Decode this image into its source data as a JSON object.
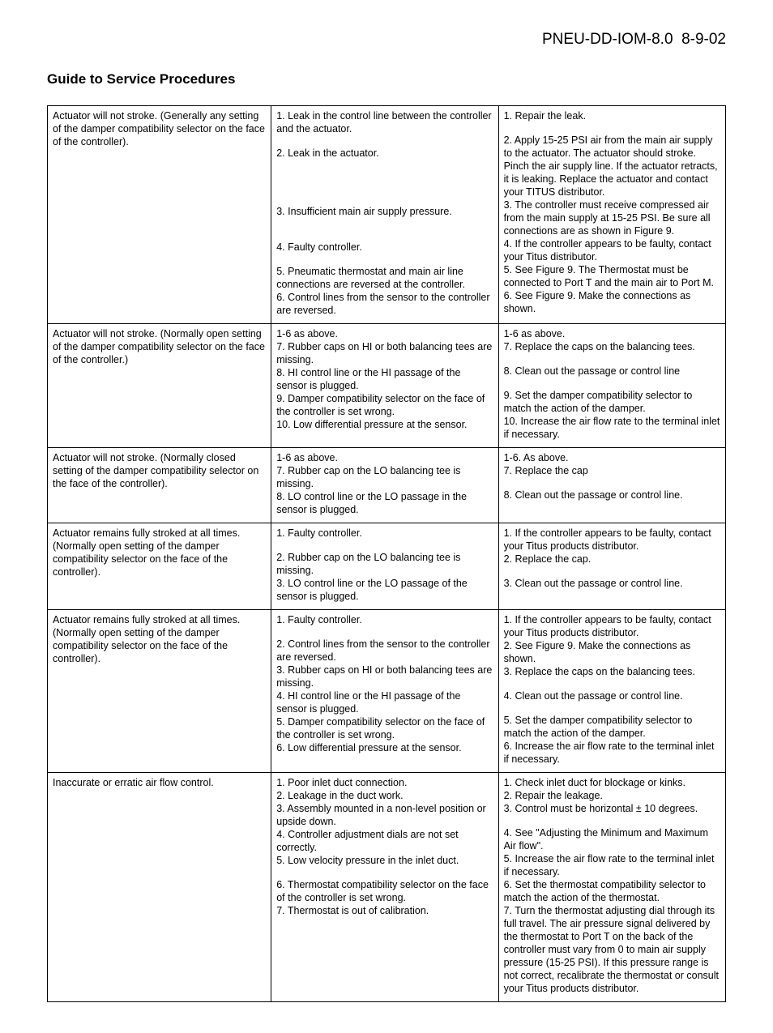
{
  "header": {
    "doc_id": "PNEU-DD-IOM-8.0",
    "date": "8-9-02"
  },
  "section_title": "Guide to Service Procedures",
  "rows": [
    {
      "problem": "Actuator will not stroke. (Generally any setting of the damper compatibility selector on the face of the controller).",
      "causes": [
        "1. Leak in the control line between the controller and the actuator.",
        "",
        "2. Leak in the actuator.",
        "",
        "",
        "",
        "",
        "3. Insufficient main air supply pressure.",
        "",
        "",
        "4. Faulty controller.",
        "",
        "5. Pneumatic thermostat and main air line connections are reversed at the controller.",
        "6. Control lines from the sensor to the controller are reversed."
      ],
      "remedies": [
        "1. Repair the leak.",
        "",
        "2. Apply 15-25 PSI air from the main air supply to the actuator. The actuator should stroke. Pinch the air supply line. If the actuator retracts, it is leaking. Replace the actuator and contact your TITUS distributor.",
        "3. The controller must receive compressed air from the main supply at 15-25 PSI. Be sure all connections are as shown in Figure 9.",
        "4. If the controller appears to be faulty, contact your Titus distributor.",
        "5. See Figure 9. The Thermostat must be connected to Port T and the main air to Port M.",
        "6. See Figure 9. Make the connections as shown."
      ]
    },
    {
      "problem": "Actuator will not stroke. (Normally open setting of the damper compatibility selector on the face of the controller.)",
      "causes": [
        "1-6 as above.",
        "7. Rubber caps on HI or both balancing tees are missing.",
        "8. HI control line or the HI passage of the sensor is plugged.",
        "9. Damper compatibility selector on the face of the controller is set wrong.",
        "10. Low differential pressure at the sensor."
      ],
      "remedies": [
        "1-6 as above.",
        "7. Replace the caps on the balancing tees.",
        "",
        "8. Clean out the passage or control line",
        "",
        "9. Set the damper compatibility selector to match the action of the damper.",
        "10. Increase the air flow rate to the terminal inlet if necessary."
      ]
    },
    {
      "problem": "Actuator will not stroke. (Normally closed setting of the damper compatibility selector on the face of the controller).",
      "causes": [
        "1-6 as above.",
        "7. Rubber cap on the LO balancing tee is missing.",
        "8. LO control line or the LO passage in the sensor is plugged."
      ],
      "remedies": [
        "1-6. As above.",
        "7. Replace the cap",
        "",
        "8. Clean out the passage or control line."
      ]
    },
    {
      "problem": "Actuator remains fully stroked at all times. (Normally open setting of the damper compatibility selector on the face of the controller).",
      "causes": [
        "1. Faulty controller.",
        "",
        "2. Rubber cap on the LO balancing tee is missing.",
        "3. LO control line or the LO passage of the sensor is plugged."
      ],
      "remedies": [
        "1. If the controller appears to be faulty, contact your Titus products distributor.",
        "2. Replace the cap.",
        "",
        "3. Clean out the passage or control line."
      ]
    },
    {
      "problem": "Actuator remains fully stroked at all times. (Normally open setting of the damper compatibility selector on the face of the controller).",
      "causes": [
        "1. Faulty controller.",
        "",
        "2. Control lines from the sensor to the controller are reversed.",
        "3. Rubber caps on HI or both balancing tees are missing.",
        "4. HI control line or the HI passage of the sensor is plugged.",
        "5. Damper compatibility selector on the face of the controller is set wrong.",
        "6. Low differential pressure at the sensor."
      ],
      "remedies": [
        "1. If the controller appears to be faulty, contact your Titus products distributor.",
        "2. See Figure 9. Make the connections as shown.",
        "3. Replace the caps on the balancing tees.",
        "",
        "4. Clean out the passage or control line.",
        "",
        "5. Set the damper compatibility selector to match the action of the damper.",
        "6. Increase the air flow rate to the terminal inlet if necessary."
      ]
    },
    {
      "problem": "Inaccurate or erratic air flow control.",
      "causes": [
        "1. Poor inlet duct connection.",
        "2. Leakage in the duct work.",
        "3. Assembly mounted in a non-level position or upside down.",
        "4. Controller adjustment dials are not set correctly.",
        "5. Low velocity pressure in the inlet duct.",
        "",
        "6. Thermostat compatibility selector on the face of the controller is set wrong.",
        "7. Thermostat is out of calibration."
      ],
      "remedies": [
        "1. Check inlet duct for blockage or kinks.",
        "2. Repair the leakage.",
        "3. Control must be horizontal ± 10 degrees.",
        "",
        "4. See \"Adjusting the Minimum and Maximum Air flow\".",
        "5. Increase the air flow rate to the terminal inlet if necessary.",
        "6. Set the thermostat compatibility selector to match the action of the thermostat.",
        "7. Turn the thermostat adjusting dial through its full travel. The air pressure signal delivered by the thermostat to Port T on the back of the controller must vary from 0 to main air supply pressure (15-25 PSI). If this pressure range is not correct, recalibrate the thermostat or consult your Titus products distributor."
      ]
    }
  ]
}
